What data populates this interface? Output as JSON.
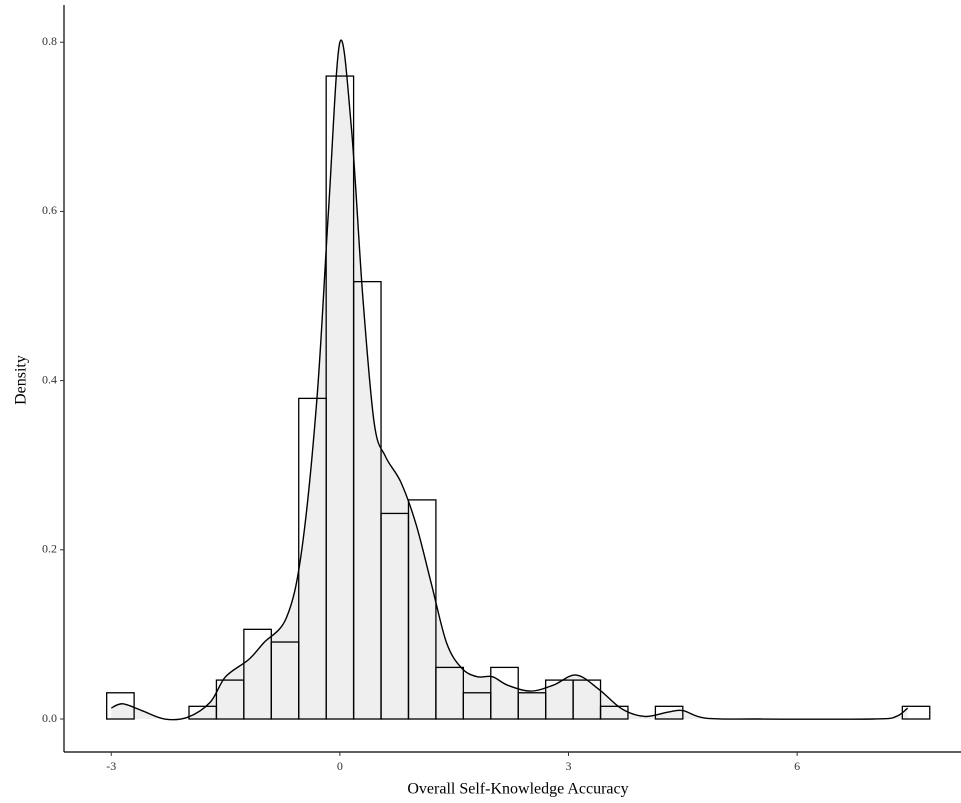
{
  "chart_data": {
    "type": "histogram",
    "x_label": "Overall Self-Knowledge Accuracy",
    "y_label": "Density",
    "bins": [
      -3.06,
      -2.7,
      -2.34,
      -1.98,
      -1.62,
      -1.26,
      -0.9,
      -0.54,
      -0.18,
      0.18,
      0.54,
      0.9,
      1.26,
      1.62,
      1.98,
      2.34,
      2.7,
      3.06,
      3.42,
      3.78,
      4.14,
      4.5,
      4.86,
      5.22,
      5.58,
      5.94,
      6.3,
      6.66,
      7.02,
      7.38,
      7.74
    ],
    "values": [
      0.031,
      0,
      0,
      0.015,
      0.046,
      0.106,
      0.091,
      0.379,
      0.76,
      0.517,
      0.243,
      0.259,
      0.061,
      0.031,
      0.061,
      0.031,
      0.046,
      0.046,
      0.015,
      0,
      0.015,
      0,
      0,
      0,
      0,
      0,
      0,
      0,
      0,
      0.015
    ],
    "density": {
      "x": [
        -3.0,
        -2.85,
        -2.6,
        -2.3,
        -2.0,
        -1.7,
        -1.5,
        -1.2,
        -1.0,
        -0.7,
        -0.5,
        -0.3,
        -0.15,
        0,
        0.15,
        0.3,
        0.45,
        0.6,
        0.8,
        1.0,
        1.2,
        1.4,
        1.6,
        1.8,
        2.0,
        2.2,
        2.5,
        2.8,
        3.1,
        3.4,
        3.7,
        4.0,
        4.3,
        4.5,
        4.8,
        5.5,
        7.0,
        7.3,
        7.45
      ],
      "y": [
        0.013,
        0.018,
        0.01,
        0.0,
        0.002,
        0.02,
        0.05,
        0.07,
        0.09,
        0.12,
        0.2,
        0.38,
        0.6,
        0.8,
        0.7,
        0.5,
        0.35,
        0.31,
        0.28,
        0.23,
        0.16,
        0.09,
        0.06,
        0.05,
        0.05,
        0.04,
        0.033,
        0.04,
        0.052,
        0.035,
        0.012,
        0.003,
        0.008,
        0.01,
        0.001,
        0,
        0,
        0.003,
        0.013
      ]
    },
    "bar_color": "#ffffff",
    "density_fill": "#efefef",
    "xlim": [
      -3.62,
      8.15
    ],
    "ylim": [
      -0.039,
      0.844
    ],
    "xticks": [
      -3,
      0,
      3,
      6
    ],
    "yticks": [
      {
        "value": 0,
        "label": "0.0"
      },
      0.2,
      0.4,
      0.6,
      0.8
    ]
  }
}
